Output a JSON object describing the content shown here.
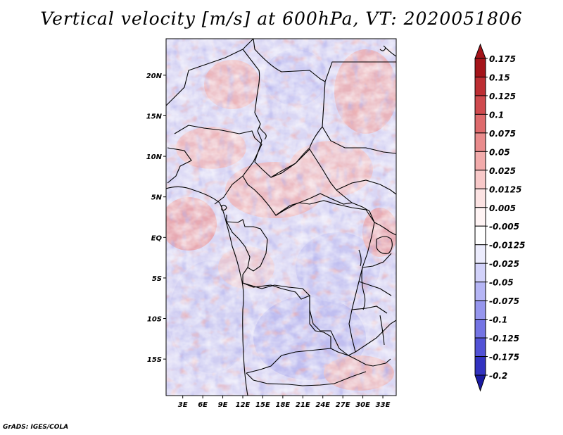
{
  "title": "Vertical velocity [m/s] at 600hPa, VT: 2020051806",
  "footer": "GrADS: IGES/COLA",
  "map": {
    "lat_ticks": [
      {
        "label": "20N",
        "lat": 20
      },
      {
        "label": "15N",
        "lat": 15
      },
      {
        "label": "10N",
        "lat": 10
      },
      {
        "label": "5N",
        "lat": 5
      },
      {
        "label": "EQ",
        "lat": 0
      },
      {
        "label": "5S",
        "lat": -5
      },
      {
        "label": "10S",
        "lat": -10
      },
      {
        "label": "15S",
        "lat": -15
      }
    ],
    "lon_ticks": [
      {
        "label": "3E",
        "lon": 3
      },
      {
        "label": "6E",
        "lon": 6
      },
      {
        "label": "9E",
        "lon": 9
      },
      {
        "label": "12E",
        "lon": 12
      },
      {
        "label": "15E",
        "lon": 15
      },
      {
        "label": "18E",
        "lon": 18
      },
      {
        "label": "21E",
        "lon": 21
      },
      {
        "label": "24E",
        "lon": 24
      },
      {
        "label": "27E",
        "lon": 27
      },
      {
        "label": "30E",
        "lon": 30
      },
      {
        "label": "33E",
        "lon": 33
      }
    ],
    "lon_range": [
      0.5,
      35
    ],
    "lat_range": [
      -19.5,
      24.5
    ]
  },
  "colorbar": {
    "units": "m/s",
    "levels": [
      {
        "label": "0.175",
        "color": "#a4141a"
      },
      {
        "label": "0.15",
        "color": "#bd2e33"
      },
      {
        "label": "0.125",
        "color": "#cf4a4e"
      },
      {
        "label": "0.1",
        "color": "#de6a6c"
      },
      {
        "label": "0.075",
        "color": "#e98b8c"
      },
      {
        "label": "0.05",
        "color": "#f2abab"
      },
      {
        "label": "0.025",
        "color": "#f8c9c9"
      },
      {
        "label": "0.0125",
        "color": "#fce3e3"
      },
      {
        "label": "0.005",
        "color": "#fff4f4"
      },
      {
        "label": "-0.005",
        "color": "#ffffff"
      },
      {
        "label": "-0.0125",
        "color": "#ececfd"
      },
      {
        "label": "-0.025",
        "color": "#d2d2fa"
      },
      {
        "label": "-0.05",
        "color": "#b5b5f5"
      },
      {
        "label": "-0.075",
        "color": "#9696ee"
      },
      {
        "label": "-0.1",
        "color": "#7474e4"
      },
      {
        "label": "-0.125",
        "color": "#5252d6"
      },
      {
        "label": "-0.175",
        "color": "#3232c0"
      },
      {
        "label": "-0.2",
        "color": "#1a1aa2"
      }
    ],
    "top_color": "#a4141a",
    "bottom_color": "#1a1aa2",
    "mid_color": "#ffffff"
  }
}
